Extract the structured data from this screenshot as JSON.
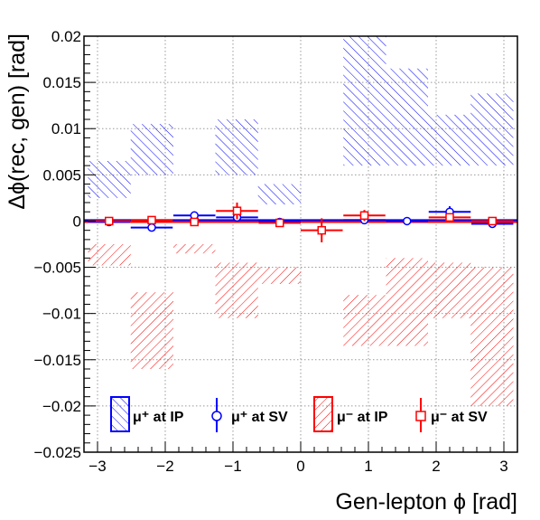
{
  "chart_data": {
    "type": "histogram-comparison",
    "xlabel": "Gen-lepton ϕ [rad]",
    "ylabel": "Δϕ(rec, gen) [rad]",
    "xlim": [
      -3.2,
      3.2
    ],
    "ylim": [
      -0.025,
      0.02
    ],
    "x_ticks": [
      -3,
      -2,
      -1,
      0,
      1,
      2,
      3
    ],
    "x_tick_labels": [
      "−3",
      "−2",
      "−1",
      "0",
      "1",
      "2",
      "3"
    ],
    "y_ticks": [
      -0.025,
      -0.02,
      -0.015,
      -0.01,
      -0.005,
      0,
      0.005,
      0.01,
      0.015,
      0.02
    ],
    "y_tick_labels": [
      "−0.025",
      "−0.02",
      "−0.015",
      "−0.01",
      "−0.005",
      "0",
      "0.005",
      "0.01",
      "0.015",
      "0.02"
    ],
    "grid": true,
    "legend_position": "bottom",
    "series": [
      {
        "name": "μ⁺ at IP",
        "style": "hatched-band",
        "color": "#0000ff",
        "bins": [
          {
            "x0": -3.14,
            "x1": -2.51,
            "lo": 0.0025,
            "hi": 0.0065
          },
          {
            "x0": -2.51,
            "x1": -1.88,
            "lo": 0.005,
            "hi": 0.0105
          },
          {
            "x0": -1.88,
            "x1": -1.26,
            "lo": 0.004,
            "hi": 0.004
          },
          {
            "x0": -1.26,
            "x1": -0.63,
            "lo": 0.005,
            "hi": 0.011
          },
          {
            "x0": -0.63,
            "x1": 0.0,
            "lo": 0.0018,
            "hi": 0.004
          },
          {
            "x0": 0.0,
            "x1": 0.63,
            "lo": 0.0,
            "hi": 0.0
          },
          {
            "x0": 0.63,
            "x1": 1.26,
            "lo": 0.006,
            "hi": 0.02
          },
          {
            "x0": 1.26,
            "x1": 1.88,
            "lo": 0.006,
            "hi": 0.0165
          },
          {
            "x0": 1.88,
            "x1": 2.51,
            "lo": 0.006,
            "hi": 0.0115
          },
          {
            "x0": 2.51,
            "x1": 3.14,
            "lo": 0.006,
            "hi": 0.0138
          }
        ]
      },
      {
        "name": "μ⁺ at SV",
        "style": "open-circle",
        "color": "#0000ff",
        "points": [
          {
            "x": -2.83,
            "y": -0.0001,
            "xerr": 0.31,
            "yerr": 0.0002
          },
          {
            "x": -2.2,
            "y": -0.0007,
            "xerr": 0.31,
            "yerr": 0.0002
          },
          {
            "x": -1.57,
            "y": 0.0006,
            "xerr": 0.31,
            "yerr": 0.0002
          },
          {
            "x": -0.94,
            "y": 0.0004,
            "xerr": 0.31,
            "yerr": 0.0002
          },
          {
            "x": -0.31,
            "y": -0.0001,
            "xerr": 0.31,
            "yerr": 0.0002
          },
          {
            "x": 0.94,
            "y": 0.0001,
            "xerr": 0.31,
            "yerr": 0.0002
          },
          {
            "x": 1.57,
            "y": 0.0,
            "xerr": 0.31,
            "yerr": 0.0002
          },
          {
            "x": 2.2,
            "y": 0.001,
            "xerr": 0.31,
            "yerr": 0.0006
          },
          {
            "x": 2.83,
            "y": -0.0003,
            "xerr": 0.31,
            "yerr": 0.0002
          }
        ]
      },
      {
        "name": "μ⁻ at IP",
        "style": "hatched-band",
        "color": "#ff0000",
        "bins": [
          {
            "x0": -3.14,
            "x1": -2.51,
            "lo": -0.0048,
            "hi": -0.0025
          },
          {
            "x0": -2.51,
            "x1": -1.88,
            "lo": -0.016,
            "hi": -0.0077
          },
          {
            "x0": -1.88,
            "x1": -1.26,
            "lo": -0.0035,
            "hi": -0.0025
          },
          {
            "x0": -1.26,
            "x1": -0.63,
            "lo": -0.0105,
            "hi": -0.0045
          },
          {
            "x0": -0.63,
            "x1": 0.0,
            "lo": -0.0068,
            "hi": -0.005
          },
          {
            "x0": 0.0,
            "x1": 0.63,
            "lo": 0.0,
            "hi": 0.0
          },
          {
            "x0": 0.63,
            "x1": 1.26,
            "lo": -0.0135,
            "hi": -0.008
          },
          {
            "x0": 1.26,
            "x1": 1.88,
            "lo": -0.0135,
            "hi": -0.004
          },
          {
            "x0": 1.88,
            "x1": 2.51,
            "lo": -0.0105,
            "hi": -0.0045
          },
          {
            "x0": 2.51,
            "x1": 3.14,
            "lo": -0.02,
            "hi": -0.005
          }
        ]
      },
      {
        "name": "μ⁻ at SV",
        "style": "open-square",
        "color": "#ff0000",
        "points": [
          {
            "x": -2.83,
            "y": 0.0,
            "xerr": 0.31,
            "yerr": 0.0002
          },
          {
            "x": -2.2,
            "y": 0.0001,
            "xerr": 0.31,
            "yerr": 0.0002
          },
          {
            "x": -1.57,
            "y": -0.0001,
            "xerr": 0.31,
            "yerr": 0.0002
          },
          {
            "x": -0.94,
            "y": 0.0011,
            "xerr": 0.31,
            "yerr": 0.0009
          },
          {
            "x": -0.31,
            "y": -0.0002,
            "xerr": 0.31,
            "yerr": 0.0002
          },
          {
            "x": 0.31,
            "y": -0.001,
            "xerr": 0.31,
            "yerr": 0.0013
          },
          {
            "x": 0.94,
            "y": 0.0006,
            "xerr": 0.31,
            "yerr": 0.0006
          },
          {
            "x": 2.2,
            "y": 0.0004,
            "xerr": 0.31,
            "yerr": 0.0002
          },
          {
            "x": 2.83,
            "y": 0.0,
            "xerr": 0.31,
            "yerr": 0.0002
          }
        ]
      }
    ]
  }
}
